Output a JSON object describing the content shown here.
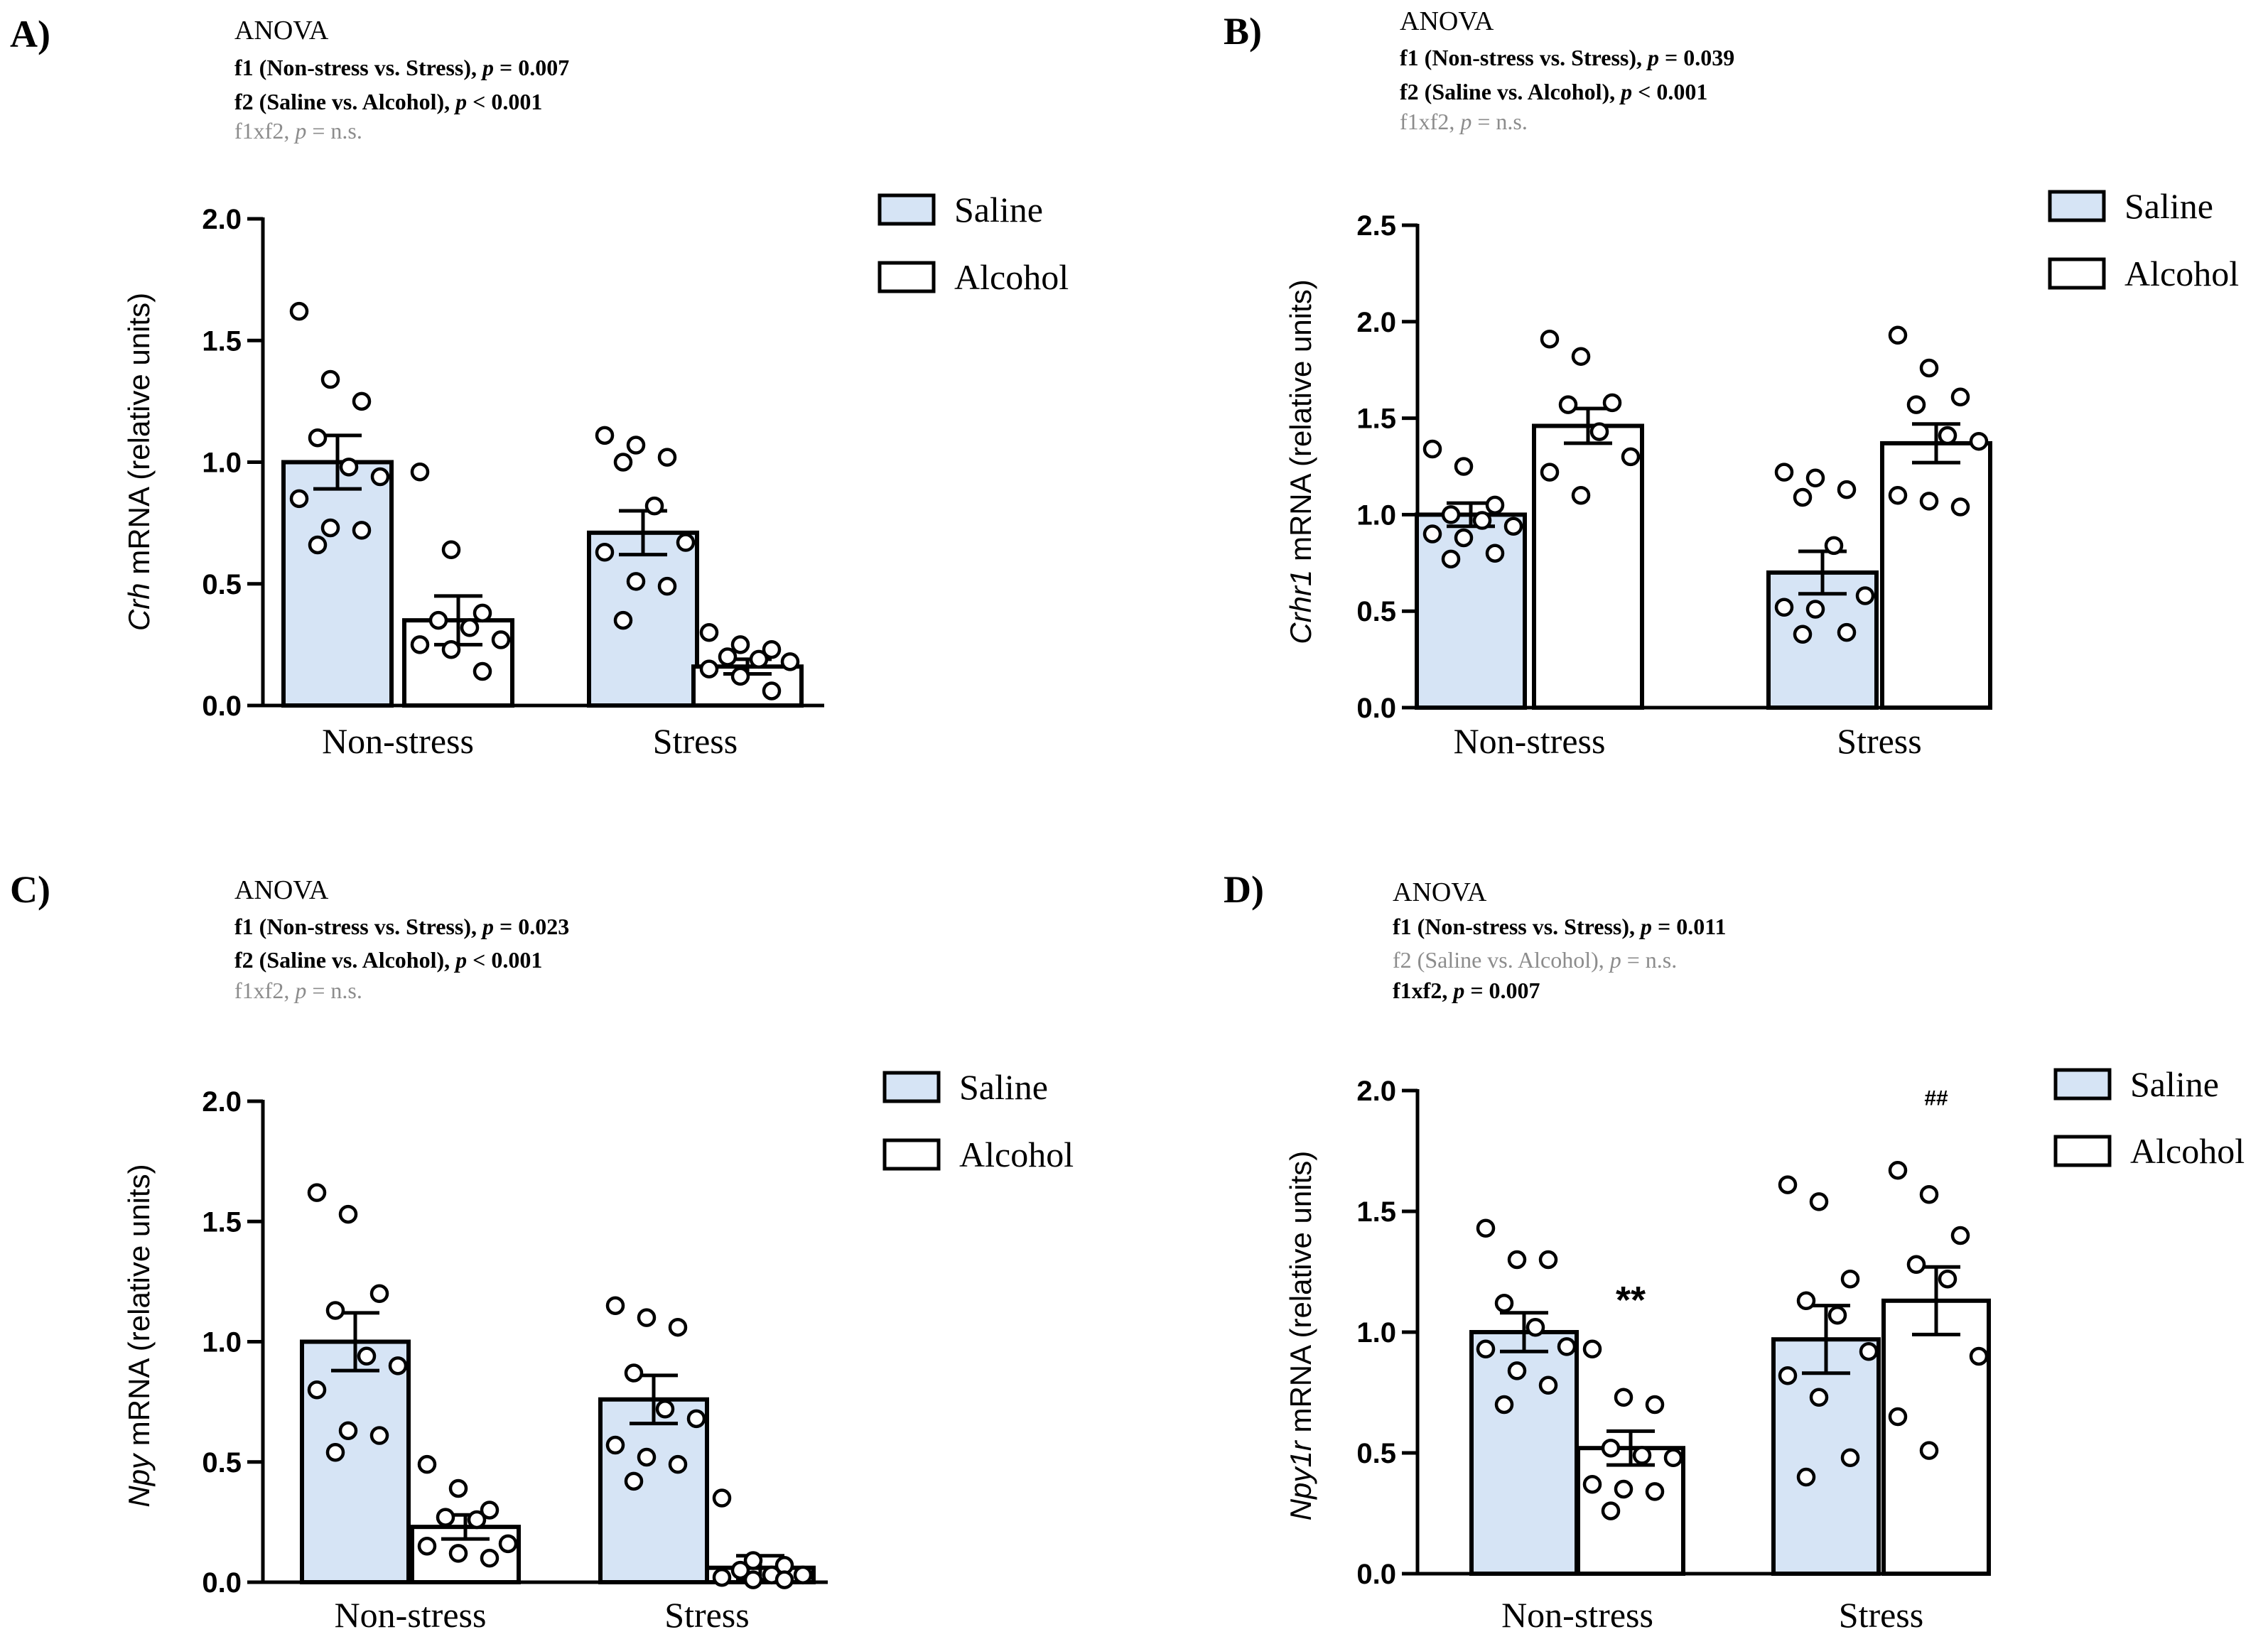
{
  "chart_data": [
    {
      "type": "bar",
      "panel": "A)",
      "anova_title": "ANOVA",
      "stats": [
        {
          "text": "f1 (Non-stress vs. Stress), ",
          "p_label": "p",
          "p_value": " = 0.007",
          "significant": true
        },
        {
          "text": "f2 (Saline vs. Alcohol), ",
          "p_label": "p",
          "p_value": " < 0.001",
          "significant": true
        },
        {
          "text": "f1xf2, ",
          "p_label": "p",
          "p_value": " = n.s.",
          "significant": false
        }
      ],
      "ylabel_gene": "Crh",
      "ylabel_rest": " mRNA (relative units)",
      "ylim": [
        0,
        2.0
      ],
      "yticks": [
        "0.0",
        "0.5",
        "1.0",
        "1.5",
        "2.0"
      ],
      "categories": [
        "Non-stress",
        "Stress"
      ],
      "series": [
        {
          "name": "Saline",
          "color": "#d6e4f5",
          "values": [
            1.0,
            0.71
          ],
          "errors": [
            0.11,
            0.09
          ],
          "points": [
            [
              1.62,
              1.34,
              1.25,
              1.1,
              0.98,
              0.94,
              0.85,
              0.73,
              0.72,
              0.66
            ],
            [
              1.11,
              1.07,
              1.02,
              1.0,
              0.82,
              0.67,
              0.63,
              0.51,
              0.49,
              0.35
            ]
          ]
        },
        {
          "name": "Alcohol",
          "color": "#ffffff",
          "values": [
            0.35,
            0.16
          ],
          "errors": [
            0.1,
            0.03
          ],
          "points": [
            [
              0.96,
              0.64,
              0.38,
              0.35,
              0.32,
              0.27,
              0.25,
              0.23,
              0.14
            ],
            [
              0.3,
              0.25,
              0.23,
              0.2,
              0.19,
              0.18,
              0.15,
              0.12,
              0.06
            ]
          ]
        }
      ],
      "annotations": []
    },
    {
      "type": "bar",
      "panel": "B)",
      "anova_title": "ANOVA",
      "stats": [
        {
          "text": "f1 (Non-stress vs. Stress), ",
          "p_label": "p",
          "p_value": " = 0.039",
          "significant": true
        },
        {
          "text": "f2 (Saline vs. Alcohol), ",
          "p_label": "p",
          "p_value": " < 0.001",
          "significant": true
        },
        {
          "text": "f1xf2, ",
          "p_label": "p",
          "p_value": " = n.s.",
          "significant": false
        }
      ],
      "ylabel_gene": "Crhr1",
      "ylabel_rest": " mRNA (relative units)",
      "ylim": [
        0,
        2.5
      ],
      "yticks": [
        "0.0",
        "0.5",
        "1.0",
        "1.5",
        "2.0",
        "2.5"
      ],
      "categories": [
        "Non-stress",
        "Stress"
      ],
      "series": [
        {
          "name": "Saline",
          "color": "#d6e4f5",
          "values": [
            1.0,
            0.7
          ],
          "errors": [
            0.06,
            0.11
          ],
          "points": [
            [
              1.34,
              1.25,
              1.05,
              1.0,
              0.97,
              0.94,
              0.9,
              0.88,
              0.8,
              0.77
            ],
            [
              1.22,
              1.19,
              1.13,
              1.09,
              0.84,
              0.58,
              0.52,
              0.51,
              0.39,
              0.38
            ]
          ]
        },
        {
          "name": "Alcohol",
          "color": "#ffffff",
          "values": [
            1.46,
            1.37
          ],
          "errors": [
            0.09,
            0.1
          ],
          "points": [
            [
              1.91,
              1.82,
              1.58,
              1.57,
              1.43,
              1.3,
              1.22,
              1.1
            ],
            [
              1.93,
              1.76,
              1.61,
              1.57,
              1.41,
              1.38,
              1.1,
              1.07,
              1.04
            ]
          ]
        }
      ],
      "annotations": []
    },
    {
      "type": "bar",
      "panel": "C)",
      "anova_title": "ANOVA",
      "stats": [
        {
          "text": "f1 (Non-stress vs. Stress), ",
          "p_label": "p",
          "p_value": " = 0.023",
          "significant": true
        },
        {
          "text": "f2 (Saline vs. Alcohol), ",
          "p_label": "p",
          "p_value": " < 0.001",
          "significant": true
        },
        {
          "text": "f1xf2, ",
          "p_label": "p",
          "p_value": " = n.s.",
          "significant": false
        }
      ],
      "ylabel_gene": "Npy",
      "ylabel_rest": " mRNA (relative units)",
      "ylim": [
        0,
        2.0
      ],
      "yticks": [
        "0.0",
        "0.5",
        "1.0",
        "1.5",
        "2.0"
      ],
      "categories": [
        "Non-stress",
        "Stress"
      ],
      "series": [
        {
          "name": "Saline",
          "color": "#d6e4f5",
          "values": [
            1.0,
            0.76
          ],
          "errors": [
            0.12,
            0.1
          ],
          "points": [
            [
              1.62,
              1.53,
              1.2,
              1.13,
              0.94,
              0.9,
              0.8,
              0.63,
              0.61,
              0.54
            ],
            [
              1.15,
              1.1,
              1.06,
              0.87,
              0.72,
              0.68,
              0.57,
              0.52,
              0.49,
              0.42
            ]
          ]
        },
        {
          "name": "Alcohol",
          "color": "#ffffff",
          "values": [
            0.23,
            0.06
          ],
          "errors": [
            0.05,
            0.05
          ],
          "points": [
            [
              0.49,
              0.39,
              0.3,
              0.27,
              0.26,
              0.16,
              0.15,
              0.12,
              0.1
            ],
            [
              0.35,
              0.09,
              0.07,
              0.05,
              0.03,
              0.03,
              0.02,
              0.01,
              0.01
            ]
          ]
        }
      ],
      "annotations": []
    },
    {
      "type": "bar",
      "panel": "D)",
      "anova_title": "ANOVA",
      "stats": [
        {
          "text": "f1 (Non-stress vs. Stress), ",
          "p_label": "p",
          "p_value": " = 0.011",
          "significant": true
        },
        {
          "text": "f2 (Saline vs. Alcohol), ",
          "p_label": "p",
          "p_value": " = n.s.",
          "significant": false
        },
        {
          "text": "f1xf2, ",
          "p_label": "p",
          "p_value": " = 0.007",
          "significant": true
        }
      ],
      "ylabel_gene": "Npy1r",
      "ylabel_rest": " mRNA (relative units)",
      "ylim": [
        0,
        2.0
      ],
      "yticks": [
        "0.0",
        "0.5",
        "1.0",
        "1.5",
        "2.0"
      ],
      "categories": [
        "Non-stress",
        "Stress"
      ],
      "series": [
        {
          "name": "Saline",
          "color": "#d6e4f5",
          "values": [
            1.0,
            0.97
          ],
          "errors": [
            0.08,
            0.14
          ],
          "points": [
            [
              1.43,
              1.3,
              1.3,
              1.12,
              1.02,
              0.94,
              0.93,
              0.84,
              0.78,
              0.7
            ],
            [
              1.61,
              1.54,
              1.22,
              1.13,
              1.07,
              0.92,
              0.82,
              0.73,
              0.48,
              0.4
            ]
          ]
        },
        {
          "name": "Alcohol",
          "color": "#ffffff",
          "values": [
            0.52,
            1.13
          ],
          "errors": [
            0.07,
            0.14
          ],
          "points": [
            [
              0.93,
              0.73,
              0.7,
              0.52,
              0.49,
              0.48,
              0.37,
              0.35,
              0.34,
              0.26
            ],
            [
              1.67,
              1.57,
              1.4,
              1.28,
              1.22,
              0.9,
              0.65,
              0.51
            ]
          ]
        }
      ],
      "annotations": [
        {
          "text": "**",
          "series": 1,
          "category": 0,
          "value": 1.08
        },
        {
          "text": "##",
          "series": 1,
          "category": 1,
          "value": 1.94
        }
      ]
    }
  ]
}
